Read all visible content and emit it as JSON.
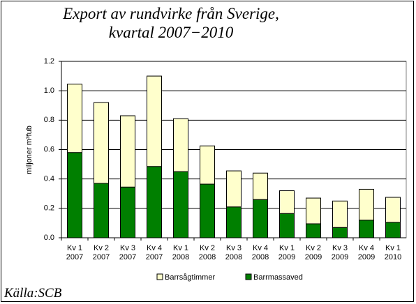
{
  "chart_data": {
    "type": "stacked_bar",
    "title": "Export av rundvirke från Sverige, kvartal 2007−2010",
    "ylabel": "miljoner m³fub",
    "source": "Källa:SCB",
    "categories": [
      "Kv 1 2007",
      "Kv 2 2007",
      "Kv 3 2007",
      "Kv 4 2007",
      "Kv 1 2008",
      "Kv 2 2008",
      "Kv 3 2008",
      "Kv 4 2008",
      "Kv 1 2009",
      "Kv 2 2009",
      "Kv 3 2009",
      "Kv 4 2009",
      "Kv 1 2010"
    ],
    "series": [
      {
        "name": "Barrsågtimmer",
        "color": "#ffffcc",
        "values": [
          0.465,
          0.55,
          0.485,
          0.615,
          0.36,
          0.26,
          0.245,
          0.18,
          0.155,
          0.175,
          0.18,
          0.21,
          0.17
        ]
      },
      {
        "name": "Barrmassaved",
        "color": "#007f00",
        "values": [
          0.58,
          0.37,
          0.345,
          0.485,
          0.45,
          0.365,
          0.21,
          0.26,
          0.165,
          0.095,
          0.07,
          0.12,
          0.105
        ]
      }
    ],
    "ylim": [
      0,
      1.2
    ],
    "yticks": [
      {
        "value": 0,
        "label": "0.0"
      },
      0.2,
      0.4,
      0.6,
      0.8,
      {
        "value": 1,
        "label": "1.0"
      },
      1.2
    ],
    "grid": true,
    "legend": "bottom"
  }
}
